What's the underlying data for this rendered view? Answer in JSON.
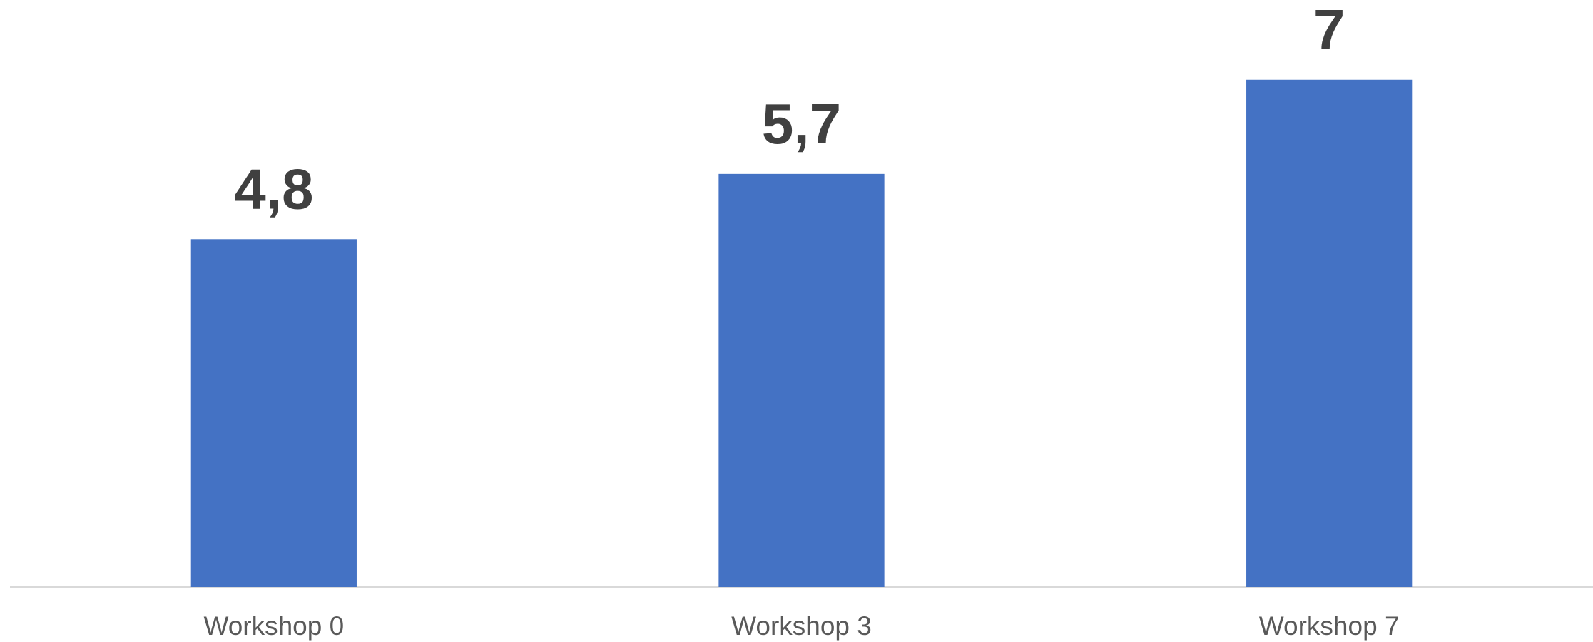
{
  "chart_data": {
    "type": "bar",
    "categories": [
      "Workshop 0",
      "Workshop 3",
      "Workshop 7"
    ],
    "values": [
      4.8,
      5.7,
      7
    ],
    "value_labels": [
      "4,8",
      "5,7",
      "7"
    ],
    "color": "#4472c4",
    "ylim": [
      0,
      8.1
    ]
  }
}
